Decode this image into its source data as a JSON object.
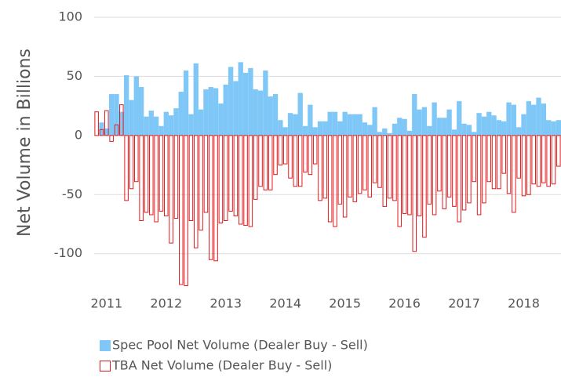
{
  "chart_data": {
    "type": "bar",
    "y_label": "Net Volume in Billions",
    "categories": [
      null,
      null,
      "2011",
      null,
      null,
      null,
      null,
      null,
      null,
      null,
      null,
      null,
      null,
      null,
      "2012",
      null,
      null,
      null,
      null,
      null,
      null,
      null,
      null,
      null,
      null,
      null,
      "2013",
      null,
      null,
      null,
      null,
      null,
      null,
      null,
      null,
      null,
      null,
      null,
      "2014",
      null,
      null,
      null,
      null,
      null,
      null,
      null,
      null,
      null,
      null,
      null,
      "2015",
      null,
      null,
      null,
      null,
      null,
      null,
      null,
      null,
      null,
      null,
      null,
      "2016",
      null,
      null,
      null,
      null,
      null,
      null,
      null,
      null,
      null,
      null,
      null,
      "2017",
      null,
      null,
      null,
      null,
      null,
      null,
      null,
      null,
      null,
      null,
      null,
      "2018",
      null,
      null,
      null,
      null,
      null,
      null,
      null
    ],
    "series": [
      {
        "name": "Spec Pool Net Volume (Dealer Buy - Sell)",
        "color": "#7fc7f7",
        "style": "filled",
        "values": [
          0,
          11,
          6,
          35,
          35,
          20,
          51,
          30,
          50,
          41,
          16,
          21,
          16,
          8,
          20,
          17,
          23,
          37,
          55,
          18,
          61,
          22,
          39,
          41,
          40,
          27,
          43,
          58,
          46,
          62,
          53,
          57,
          39,
          38,
          55,
          33,
          35,
          13,
          7,
          19,
          18,
          36,
          8,
          26,
          7,
          12,
          12,
          20,
          20,
          12,
          20,
          18,
          18,
          18,
          11,
          9,
          24,
          3,
          6,
          2,
          10,
          15,
          14,
          4,
          35,
          22,
          24,
          8,
          28,
          15,
          15,
          22,
          5,
          29,
          10,
          9,
          3,
          19,
          16,
          20,
          17,
          13,
          12,
          28,
          26,
          7,
          18,
          29,
          26,
          32,
          27,
          13,
          12,
          13
        ]
      },
      {
        "name": "TBA Net Volume (Dealer Buy - Sell)",
        "color": "#e31a1c",
        "style": "outline",
        "values": [
          20,
          5,
          21,
          -5,
          9,
          26,
          -55,
          -45,
          -39,
          -72,
          -65,
          -67,
          -73,
          -64,
          -68,
          -91,
          -70,
          -126,
          -127,
          -72,
          -95,
          -80,
          -65,
          -105,
          -106,
          -74,
          -72,
          -64,
          -68,
          -75,
          -76,
          -77,
          -54,
          -43,
          -46,
          -46,
          -33,
          -25,
          -24,
          -36,
          -43,
          -43,
          -31,
          -33,
          -24,
          -55,
          -53,
          -73,
          -77,
          -58,
          -69,
          -52,
          -56,
          -49,
          -46,
          -52,
          -40,
          -44,
          -60,
          -53,
          -55,
          -77,
          -66,
          -67,
          -98,
          -68,
          -86,
          -58,
          -67,
          -47,
          -62,
          -52,
          -60,
          -73,
          -63,
          -57,
          -39,
          -67,
          -57,
          -39,
          -45,
          -45,
          -32,
          -49,
          -65,
          -36,
          -51,
          -50,
          -41,
          -43,
          -40,
          -43,
          -41,
          -26
        ]
      }
    ],
    "ylim": [
      -130,
      100
    ],
    "yticks": [
      -100,
      -50,
      0,
      50,
      100
    ],
    "grid": true
  }
}
